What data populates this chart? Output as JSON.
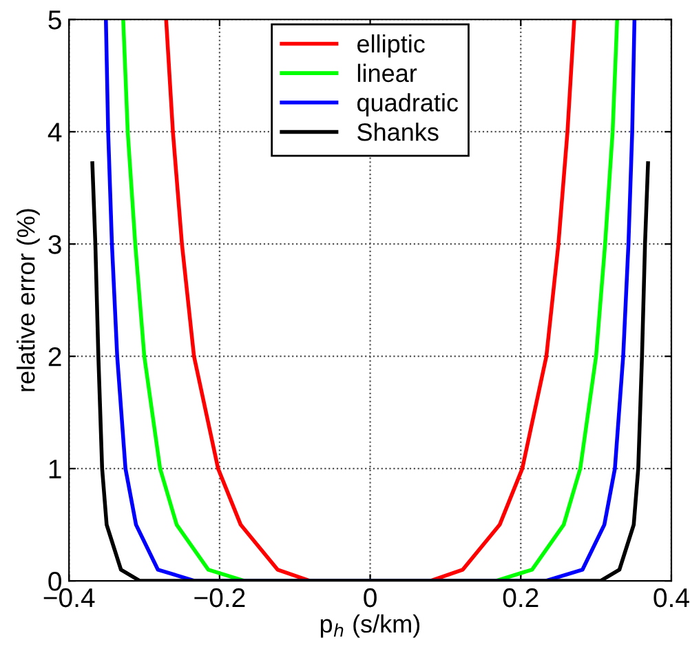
{
  "chart_data": {
    "type": "line",
    "xlabel": "p$_{h}$ (s/km)",
    "ylabel": "relative error (%)",
    "xlim": [
      -0.4,
      0.4
    ],
    "ylim": [
      0,
      5
    ],
    "xticks": [
      -0.4,
      -0.2,
      0,
      0.2,
      0.4
    ],
    "yticks": [
      0,
      1,
      2,
      3,
      4,
      5
    ],
    "grid": true,
    "legend": "top",
    "line_style": "solid",
    "marker": "none",
    "series": [
      {
        "name": "elliptic",
        "color": "#ff0000",
        "x": [
          -0.271,
          -0.262,
          -0.25,
          -0.234,
          -0.202,
          -0.172,
          -0.123,
          -0.08,
          0,
          0.08,
          0.123,
          0.172,
          0.202,
          0.234,
          0.25,
          0.262,
          0.271
        ],
        "values": [
          5,
          4,
          3,
          2,
          1,
          0.5,
          0.1,
          0,
          0,
          0,
          0.1,
          0.5,
          1,
          2,
          3,
          4,
          5
        ]
      },
      {
        "name": "linear",
        "color": "#00ff00",
        "x": [
          -0.328,
          -0.322,
          -0.312,
          -0.3,
          -0.279,
          -0.257,
          -0.215,
          -0.167,
          0,
          0.167,
          0.215,
          0.257,
          0.279,
          0.3,
          0.312,
          0.322,
          0.328
        ],
        "values": [
          5,
          4,
          3,
          2,
          1,
          0.5,
          0.1,
          0,
          0,
          0,
          0.1,
          0.5,
          1,
          2,
          3,
          4,
          5
        ]
      },
      {
        "name": "quadratic",
        "color": "#0000ff",
        "x": [
          -0.351,
          -0.348,
          -0.343,
          -0.336,
          -0.325,
          -0.311,
          -0.282,
          -0.233,
          0,
          0.233,
          0.282,
          0.311,
          0.325,
          0.336,
          0.343,
          0.348,
          0.351
        ],
        "values": [
          5,
          4,
          3,
          2,
          1,
          0.5,
          0.1,
          0,
          0,
          0,
          0.1,
          0.5,
          1,
          2,
          3,
          4,
          5
        ]
      },
      {
        "name": "Shanks",
        "color": "#000000",
        "x": [
          -0.369,
          -0.365,
          -0.361,
          -0.356,
          -0.35,
          -0.331,
          -0.306,
          0,
          0.306,
          0.331,
          0.35,
          0.356,
          0.361,
          0.365,
          0.369
        ],
        "values": [
          3.72,
          3,
          2,
          1,
          0.5,
          0.1,
          0,
          0,
          0,
          0.1,
          0.5,
          1,
          2,
          3,
          3.72
        ]
      }
    ]
  }
}
